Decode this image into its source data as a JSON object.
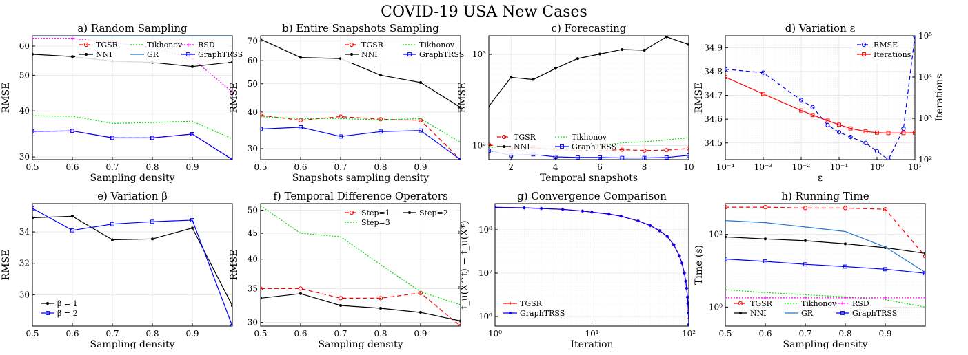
{
  "suptitle": "COVID-19 USA New Cases",
  "chart_data": [
    {
      "id": "a",
      "type": "line",
      "title": "a) Random Sampling",
      "xlabel": "Sampling density",
      "ylabel": "RMSE",
      "xlim": [
        0.5,
        1.0
      ],
      "ylim": [
        29.5,
        64
      ],
      "yscale": "log",
      "xticks": [
        0.5,
        0.6,
        0.7,
        0.8,
        0.9
      ],
      "xtick_labels": [
        "0.5",
        "0.6",
        "0.7",
        "0.8",
        "0.9"
      ],
      "yticks": [
        30,
        40,
        50,
        60
      ],
      "ytick_labels": [
        "30",
        "40",
        "50",
        "60"
      ],
      "x": [
        0.5,
        0.6,
        0.7,
        0.8,
        0.9,
        1.0
      ],
      "legend": {
        "position": "upper-right",
        "cols": 3
      },
      "series": [
        {
          "name": "TGSR",
          "color": "#ff0000",
          "dash": "6,4",
          "marker": "o",
          "values": [
            35.2,
            35.3,
            33.8,
            33.8,
            34.6,
            29.5
          ]
        },
        {
          "name": "Tikhonov",
          "color": "#00dd00",
          "dash": "2,2",
          "values": [
            38.8,
            38.7,
            37.0,
            37.2,
            37.5,
            33.6
          ]
        },
        {
          "name": "RSD",
          "color": "#ff00ff",
          "dash": "2,2",
          "marker": "+",
          "values": [
            63.0,
            63.0,
            61.3,
            59.5,
            55.5,
            45.0
          ]
        },
        {
          "name": "NNI",
          "color": "#000000",
          "dash": "",
          "marker": "•",
          "values": [
            57.0,
            56.2,
            54.6,
            54.2,
            52.8,
            54.3
          ]
        },
        {
          "name": "GR",
          "color": "#1f77d0",
          "dash": "",
          "values": [
            64.0,
            64.0,
            64.0,
            64.0,
            64.0,
            64.0
          ]
        },
        {
          "name": "GraphTRSS",
          "color": "#0000ff",
          "dash": "",
          "marker": "s",
          "values": [
            35.2,
            35.3,
            33.8,
            33.8,
            34.6,
            29.5
          ]
        }
      ]
    },
    {
      "id": "b",
      "type": "line",
      "title": "b) Entire Snapshots Sampling",
      "xlabel": "Snapshots sampling density",
      "ylabel": "RMSE",
      "xlim": [
        0.5,
        1.0
      ],
      "ylim": [
        27.5,
        73
      ],
      "yscale": "log",
      "xticks": [
        0.5,
        0.6,
        0.7,
        0.8,
        0.9
      ],
      "xtick_labels": [
        "0.5",
        "0.6",
        "0.7",
        "0.8",
        "0.9"
      ],
      "yticks": [
        30,
        40,
        50,
        60,
        70
      ],
      "ytick_labels": [
        "30",
        "40",
        "50",
        "60",
        "70"
      ],
      "x": [
        0.5,
        0.6,
        0.7,
        0.8,
        0.9,
        1.0
      ],
      "legend": {
        "position": "upper-right",
        "cols": 2
      },
      "series": [
        {
          "name": "TGSR",
          "color": "#ff0000",
          "dash": "6,4",
          "marker": "o",
          "values": [
            39.0,
            37.5,
            38.6,
            37.8,
            37.5,
            27.5
          ]
        },
        {
          "name": "Tikhonov",
          "color": "#00dd00",
          "dash": "2,2",
          "values": [
            38.6,
            38.0,
            38.0,
            37.6,
            38.0,
            31.5
          ]
        },
        {
          "name": "NNI",
          "color": "#000000",
          "dash": "",
          "marker": "•",
          "values": [
            71.0,
            61.5,
            61.0,
            53.5,
            50.5,
            41.5
          ]
        },
        {
          "name": "GraphTRSS",
          "color": "#0000ff",
          "dash": "",
          "marker": "s",
          "values": [
            35.0,
            35.5,
            33.0,
            34.3,
            34.6,
            27.5
          ]
        }
      ]
    },
    {
      "id": "c",
      "type": "line",
      "title": "c) Forecasting",
      "xlabel": "Temporal snapshots",
      "ylabel": "RMSE",
      "xlim": [
        1,
        10
      ],
      "ylim": [
        70,
        1600
      ],
      "yscale": "log",
      "xticks": [
        2,
        4,
        6,
        8,
        10
      ],
      "xtick_labels": [
        "2",
        "4",
        "6",
        "8",
        "10"
      ],
      "yticks": [
        100,
        1000
      ],
      "ytick_labels": [
        "10²",
        "10³"
      ],
      "x": [
        1,
        2,
        3,
        4,
        5,
        6,
        7,
        8,
        9,
        10
      ],
      "legend": {
        "position": "lower-left",
        "cols": 2
      },
      "series": [
        {
          "name": "TGSR",
          "color": "#ff0000",
          "dash": "6,4",
          "marker": "o",
          "values": [
            102,
            92,
            95,
            90,
            88,
            88,
            90,
            88,
            89,
            93
          ]
        },
        {
          "name": "Tikhonov",
          "color": "#00dd00",
          "dash": "2,2",
          "values": [
            97,
            85,
            93,
            92,
            94,
            100,
            107,
            110,
            115,
            122
          ]
        },
        {
          "name": "NNI",
          "color": "#000000",
          "dash": "",
          "marker": "•",
          "values": [
            270,
            560,
            530,
            700,
            900,
            1010,
            1130,
            1110,
            1560,
            1280
          ]
        },
        {
          "name": "GraphTRSS",
          "color": "#0000ff",
          "dash": "",
          "marker": "s",
          "values": [
            88,
            78,
            80,
            75,
            74,
            74,
            73,
            73,
            74,
            78
          ]
        }
      ]
    },
    {
      "id": "d",
      "type": "line",
      "title": "d) Variation ε",
      "xlabel": "ε",
      "ylabel": "RMSE",
      "ylabel_right": "Iterations",
      "xlim": [
        0.0001,
        10
      ],
      "xscale": "log",
      "ylim": [
        34.43,
        34.95
      ],
      "ylim_right": [
        100,
        100000
      ],
      "yscale_right": "log",
      "xticks": [
        0.0001,
        0.001,
        0.01,
        0.1,
        1,
        10
      ],
      "xtick_labels": [
        "10⁻⁴",
        "10⁻³",
        "10⁻²",
        "10⁻¹",
        "10⁰",
        "10¹"
      ],
      "yticks": [
        34.5,
        34.6,
        34.7,
        34.8,
        34.9
      ],
      "ytick_labels": [
        "34.5",
        "34.6",
        "34.7",
        "34.8",
        "34.9"
      ],
      "yticks_right": [
        100,
        1000,
        10000,
        100000
      ],
      "ytick_labels_right": [
        "10²",
        "10³",
        "10⁴",
        "10⁵"
      ],
      "legend": {
        "position": "upper-right",
        "cols": 1
      },
      "series": [
        {
          "name": "RMSE",
          "axis": "left",
          "color": "#0000ff",
          "dash": "6,4",
          "marker": "o",
          "x": [
            0.0001,
            0.001,
            0.01,
            0.02,
            0.05,
            0.1,
            0.2,
            0.5,
            1,
            2,
            5,
            10
          ],
          "values": [
            34.81,
            34.795,
            34.68,
            34.65,
            34.575,
            34.545,
            34.525,
            34.5,
            34.465,
            34.43,
            34.56,
            34.95
          ]
        },
        {
          "name": "Iterations",
          "axis": "right",
          "color": "#ff0000",
          "dash": "",
          "marker": "s",
          "x": [
            0.0001,
            0.001,
            0.01,
            0.02,
            0.05,
            0.1,
            0.2,
            0.5,
            1,
            2,
            5,
            10
          ],
          "values": [
            10000,
            3900,
            1550,
            1200,
            880,
            700,
            570,
            480,
            450,
            440,
            440,
            450
          ]
        }
      ]
    },
    {
      "id": "e",
      "type": "line",
      "title": "e) Variation β",
      "xlabel": "Sampling density",
      "ylabel": "RMSE",
      "xlim": [
        0.5,
        1.0
      ],
      "ylim": [
        28.0,
        35.8
      ],
      "xticks": [
        0.5,
        0.6,
        0.7,
        0.8,
        0.9
      ],
      "xtick_labels": [
        "0.5",
        "0.6",
        "0.7",
        "0.8",
        "0.9"
      ],
      "yticks": [
        30,
        32,
        34
      ],
      "ytick_labels": [
        "30",
        "32",
        "34"
      ],
      "x": [
        0.5,
        0.6,
        0.7,
        0.8,
        0.9,
        1.0
      ],
      "legend": {
        "position": "lower-left",
        "cols": 1
      },
      "series": [
        {
          "name": "β = 1",
          "color": "#000000",
          "dash": "",
          "marker": "•",
          "values": [
            34.9,
            35.0,
            33.5,
            33.55,
            34.25,
            29.3
          ]
        },
        {
          "name": "β = 2",
          "color": "#0000ff",
          "dash": "",
          "marker": "s",
          "values": [
            35.5,
            34.1,
            34.5,
            34.65,
            34.75,
            28.0
          ]
        }
      ]
    },
    {
      "id": "f",
      "type": "line",
      "title": "f) Temporal Difference Operators",
      "xlabel": "Sampling density",
      "ylabel": "RMSE",
      "xlim": [
        0.5,
        1.0
      ],
      "ylim": [
        29.5,
        51.5
      ],
      "yscale": "log",
      "xticks": [
        0.5,
        0.6,
        0.7,
        0.8,
        0.9
      ],
      "xtick_labels": [
        "0.5",
        "0.6",
        "0.7",
        "0.8",
        "0.9"
      ],
      "yticks": [
        30,
        35,
        40,
        45,
        50
      ],
      "ytick_labels": [
        "30",
        "35",
        "40",
        "45",
        "50"
      ],
      "x": [
        0.5,
        0.6,
        0.7,
        0.8,
        0.9,
        1.0
      ],
      "legend": {
        "position": "upper-right",
        "cols": 2
      },
      "series": [
        {
          "name": "Step=1",
          "color": "#ff0000",
          "dash": "6,4",
          "marker": "o",
          "values": [
            35.0,
            35.0,
            33.5,
            33.5,
            34.3,
            29.5
          ]
        },
        {
          "name": "Step=2",
          "color": "#000000",
          "dash": "",
          "marker": "•",
          "values": [
            33.5,
            34.2,
            32.4,
            32.0,
            31.4,
            30.2
          ]
        },
        {
          "name": "Step=3",
          "color": "#00dd00",
          "dash": "2,2",
          "values": [
            51.0,
            45.0,
            44.3,
            39.0,
            34.5,
            32.5
          ]
        }
      ]
    },
    {
      "id": "g",
      "type": "line",
      "title": "g) Convergence Comparison",
      "xlabel": "Iteration",
      "ylabel": "f_u(X̃^t) − f_u(X̃*)",
      "xlim": [
        1,
        100
      ],
      "xscale": "log",
      "ylim": [
        600000,
        400000000
      ],
      "yscale": "log",
      "xticks": [
        1,
        10,
        100
      ],
      "xtick_labels": [
        "10⁰",
        "10¹",
        "10²"
      ],
      "yticks": [
        1000000,
        10000000,
        100000000
      ],
      "ytick_labels": [
        "10⁶",
        "10⁷",
        "10⁸"
      ],
      "legend": {
        "position": "lower-left",
        "cols": 1
      },
      "series": [
        {
          "name": "TGSR",
          "color": "#ff0000",
          "dash": "",
          "marker": "+",
          "x": [
            1,
            2,
            3,
            5,
            8,
            10,
            15,
            20,
            30,
            40,
            50,
            60,
            70,
            80,
            85,
            90,
            93,
            95,
            97,
            98,
            99,
            100
          ],
          "values": [
            330000000,
            320000000,
            310000000,
            295000000,
            270000000,
            255000000,
            230000000,
            205000000,
            160000000,
            125000000,
            95000000,
            70000000,
            45000000,
            25000000,
            17000000,
            10000000,
            6500000,
            4500000,
            2800000,
            2000000,
            1400000,
            900000
          ]
        },
        {
          "name": "GraphTRSS",
          "color": "#0000ff",
          "dash": "",
          "marker": "•",
          "x": [
            1,
            2,
            3,
            5,
            8,
            10,
            15,
            20,
            30,
            40,
            50,
            60,
            70,
            80,
            85,
            90,
            93,
            95,
            97,
            98,
            99,
            100
          ],
          "values": [
            330000000,
            320000000,
            310000000,
            295000000,
            270000000,
            255000000,
            230000000,
            205000000,
            160000000,
            125000000,
            95000000,
            70000000,
            45000000,
            25000000,
            17000000,
            10000000,
            6500000,
            4500000,
            2800000,
            2000000,
            1200000,
            650000
          ]
        }
      ]
    },
    {
      "id": "h",
      "type": "line",
      "title": "h) Running Time",
      "xlabel": "Sampling density",
      "ylabel": "Time (s)",
      "xlim": [
        0.5,
        1.0
      ],
      "ylim": [
        0.3,
        700
      ],
      "yscale": "log",
      "xticks": [
        0.5,
        0.6,
        0.7,
        0.8,
        0.9
      ],
      "xtick_labels": [
        "0.5",
        "0.6",
        "0.7",
        "0.8",
        "0.9"
      ],
      "yticks": [
        1,
        100
      ],
      "ytick_labels": [
        "10⁰",
        "10²"
      ],
      "x": [
        0.5,
        0.6,
        0.7,
        0.8,
        0.9,
        1.0
      ],
      "legend": {
        "position": "lower-left",
        "cols": 3
      },
      "series": [
        {
          "name": "TGSR",
          "color": "#ff0000",
          "dash": "6,4",
          "marker": "o",
          "values": [
            560,
            560,
            530,
            530,
            490,
            25
          ]
        },
        {
          "name": "Tikhonov",
          "color": "#00dd00",
          "dash": "2,2",
          "values": [
            3.0,
            2.5,
            2.2,
            1.9,
            1.6,
            1.0
          ]
        },
        {
          "name": "RSD",
          "color": "#ff00ff",
          "dash": "2,2",
          "marker": "+",
          "values": [
            1.8,
            1.8,
            1.8,
            1.8,
            1.8,
            1.8
          ]
        },
        {
          "name": "NNI",
          "color": "#000000",
          "dash": "",
          "marker": "•",
          "values": [
            85,
            75,
            67,
            55,
            43,
            30
          ]
        },
        {
          "name": "GR",
          "color": "#1f77d0",
          "dash": "",
          "values": [
            240,
            210,
            160,
            120,
            45,
            9
          ]
        },
        {
          "name": "GraphTRSS",
          "color": "#0000ff",
          "dash": "",
          "marker": "s",
          "values": [
            21,
            18,
            15,
            13,
            11,
            8.5
          ]
        }
      ]
    }
  ]
}
